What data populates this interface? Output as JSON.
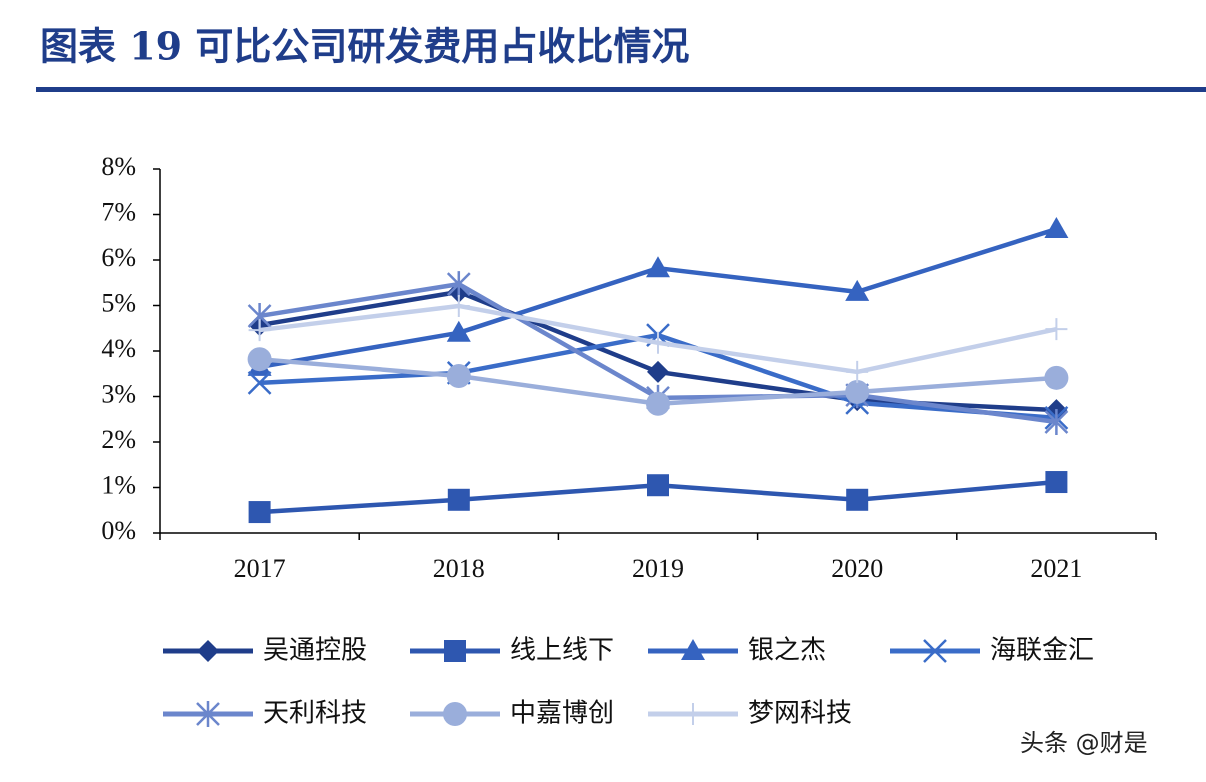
{
  "chart_data": {
    "type": "line",
    "title": "图表 19   可比公司研发费用占收比情况",
    "watermark": "头条 @财是",
    "categories": [
      "2017",
      "2018",
      "2019",
      "2020",
      "2021"
    ],
    "ylim": [
      0,
      8
    ],
    "yticks": [
      {
        "value": 0,
        "label": "0%"
      },
      {
        "value": 1,
        "label": "1%"
      },
      {
        "value": 2,
        "label": "2%"
      },
      {
        "value": 3,
        "label": "3%"
      },
      {
        "value": 4,
        "label": "4%"
      },
      {
        "value": 5,
        "label": "5%"
      },
      {
        "value": 6,
        "label": "6%"
      },
      {
        "value": 7,
        "label": "7%"
      },
      {
        "value": 8,
        "label": "8%"
      }
    ],
    "series": [
      {
        "name": "吴通控股",
        "color": "#1f3d8a",
        "marker": "diamond",
        "values": [
          4.57,
          5.3,
          3.54,
          2.92,
          2.7
        ]
      },
      {
        "name": "线上线下",
        "color": "#2e57b0",
        "marker": "square",
        "values": [
          0.46,
          0.73,
          1.05,
          0.73,
          1.12
        ]
      },
      {
        "name": "银之杰",
        "color": "#3563c0",
        "marker": "triangle",
        "values": [
          3.65,
          4.4,
          5.82,
          5.3,
          6.68
        ]
      },
      {
        "name": "海联金汇",
        "color": "#3a6cc8",
        "marker": "x",
        "values": [
          3.3,
          3.52,
          4.35,
          2.86,
          2.53
        ]
      },
      {
        "name": "天利科技",
        "color": "#6b86cc",
        "marker": "star",
        "values": [
          4.77,
          5.47,
          2.97,
          3.03,
          2.44
        ]
      },
      {
        "name": "中嘉博创",
        "color": "#9aaedb",
        "marker": "circle",
        "values": [
          3.82,
          3.45,
          2.84,
          3.1,
          3.41
        ]
      },
      {
        "name": "梦网科技",
        "color": "#c3cfea",
        "marker": "plus",
        "values": [
          4.46,
          4.99,
          4.18,
          3.54,
          4.48
        ]
      }
    ]
  }
}
